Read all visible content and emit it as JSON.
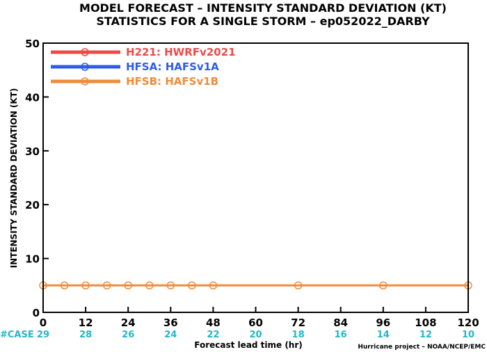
{
  "title_line1": "MODEL FORECAST – INTENSITY STANDARD DEVIATION (KT)",
  "title_line2": "STATISTICS FOR A SINGLE STORM – ep052022_DARBY",
  "credit": "Hurricane project – NOAA/NCEP/EMC",
  "case_label": "#CASE",
  "case_color": "#22b6c8",
  "chart_data": {
    "type": "line",
    "xlabel": "Forecast lead time (hr)",
    "ylabel": "INTENSITY STANDARD DEVIATION (KT)",
    "xlim": [
      0,
      120
    ],
    "ylim": [
      0,
      50
    ],
    "xticks": [
      0,
      12,
      24,
      36,
      48,
      60,
      72,
      84,
      96,
      108,
      120
    ],
    "yticks": [
      0,
      10,
      20,
      30,
      40,
      50
    ],
    "grid": false,
    "legend": "top-left",
    "case_counts": [
      {
        "x": 0,
        "n": "29"
      },
      {
        "x": 12,
        "n": "28"
      },
      {
        "x": 24,
        "n": "26"
      },
      {
        "x": 36,
        "n": "24"
      },
      {
        "x": 48,
        "n": "22"
      },
      {
        "x": 60,
        "n": "20"
      },
      {
        "x": 72,
        "n": "18"
      },
      {
        "x": 84,
        "n": "16"
      },
      {
        "x": 96,
        "n": "14"
      },
      {
        "x": 108,
        "n": "12"
      },
      {
        "x": 120,
        "n": "10"
      }
    ],
    "series": [
      {
        "name": "H221: HWRFv2021",
        "color": "#ee4a4a",
        "x": [],
        "y": []
      },
      {
        "name": "HFSA: HAFSv1A",
        "color": "#2e5be8",
        "x": [],
        "y": []
      },
      {
        "name": "HFSB: HAFSv1B",
        "color": "#ef8c3a",
        "x": [
          0,
          6,
          12,
          18,
          24,
          30,
          36,
          42,
          48,
          72,
          96,
          120
        ],
        "y": [
          5,
          5,
          5,
          5,
          5,
          5,
          5,
          5,
          5,
          5,
          5,
          5
        ]
      }
    ]
  }
}
